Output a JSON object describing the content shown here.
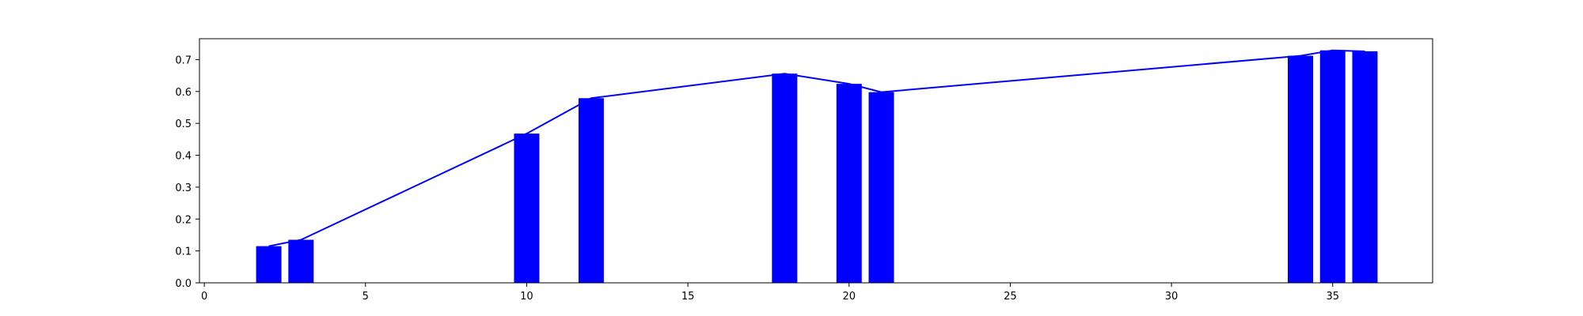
{
  "chart_data": {
    "type": "bar",
    "x": [
      2,
      3,
      10,
      12,
      18,
      20,
      21,
      34,
      35,
      36
    ],
    "values": [
      0.115,
      0.135,
      0.468,
      0.579,
      0.656,
      0.624,
      0.598,
      0.712,
      0.729,
      0.726
    ],
    "overlay_line": {
      "x": [
        2,
        3,
        10,
        12,
        18,
        20,
        21,
        34,
        35,
        36
      ],
      "values": [
        0.115,
        0.135,
        0.468,
        0.579,
        0.656,
        0.624,
        0.598,
        0.712,
        0.729,
        0.726
      ]
    },
    "title": "",
    "xlabel": "",
    "ylabel": "",
    "xlim": [
      -0.15,
      38.1
    ],
    "ylim": [
      0,
      0.7655
    ],
    "x_ticks": [
      "0",
      "5",
      "10",
      "15",
      "20",
      "25",
      "30",
      "35"
    ],
    "y_ticks": [
      "0.0",
      "0.1",
      "0.2",
      "0.3",
      "0.4",
      "0.5",
      "0.6",
      "0.7"
    ],
    "grid": false,
    "bar_color": "#0000ff",
    "line_color": "#0000ff"
  }
}
